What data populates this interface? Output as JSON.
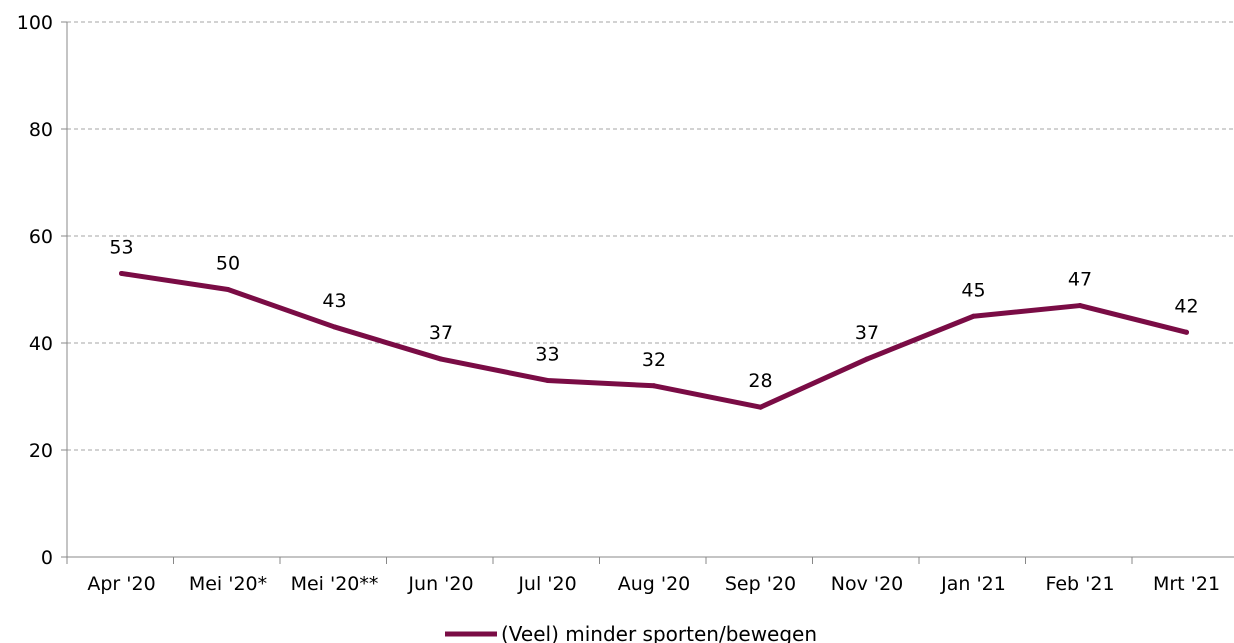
{
  "chart_data": {
    "type": "line",
    "categories": [
      "Apr '20",
      "Mei '20*",
      "Mei '20**",
      "Jun '20",
      "Jul '20",
      "Aug '20",
      "Sep '20",
      "Nov '20",
      "Jan '21",
      "Feb '21",
      "Mrt '21"
    ],
    "series": [
      {
        "name": "(Veel) minder sporten/bewegen",
        "values": [
          53,
          50,
          43,
          37,
          33,
          32,
          28,
          37,
          45,
          47,
          42
        ],
        "color": "#7a0c45"
      }
    ],
    "data_labels": [
      "53",
      "50",
      "43",
      "37",
      "33",
      "32",
      "28",
      "37",
      "45",
      "47",
      "42"
    ],
    "ylim": [
      0,
      100
    ],
    "yticks": [
      "0",
      "20",
      "40",
      "60",
      "80",
      "100"
    ],
    "title": "",
    "xlabel": "",
    "ylabel": "",
    "grid": "horizontal dashed",
    "legend_position": "bottom"
  }
}
